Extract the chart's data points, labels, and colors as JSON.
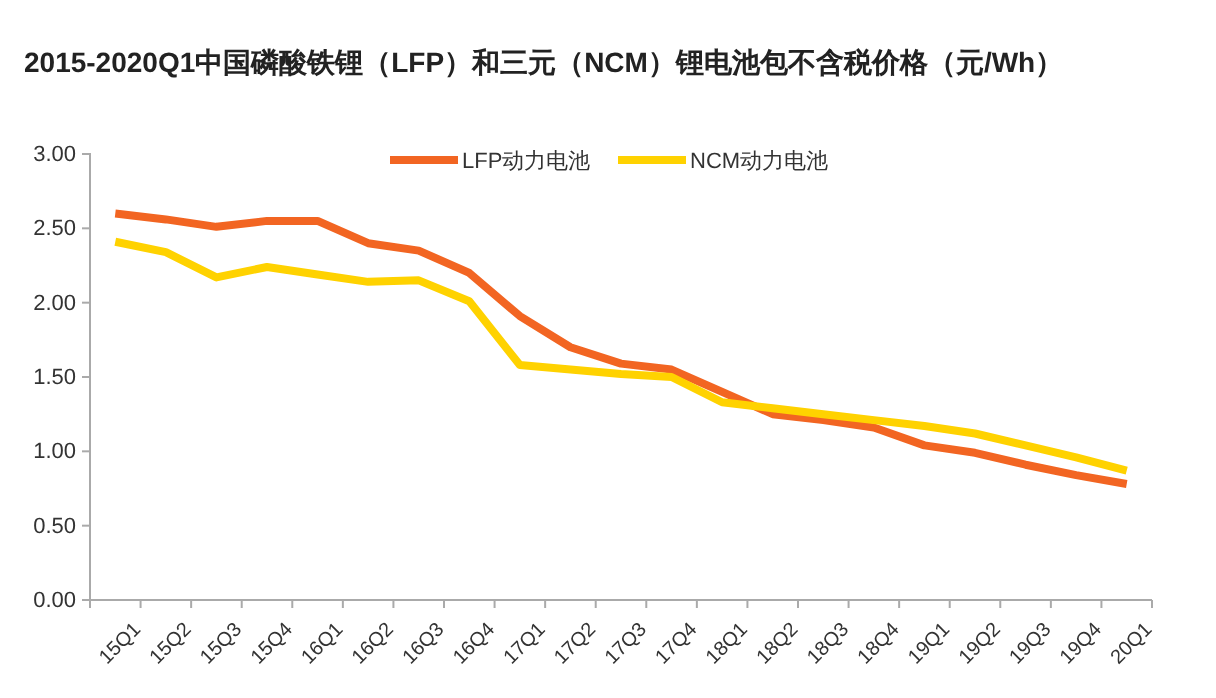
{
  "chart_data": {
    "type": "line",
    "title": "2015-2020Q1中国磷酸铁锂（LFP）和三元（NCM）锂电池包不含税价格（元/Wh）",
    "categories": [
      "15Q1",
      "15Q2",
      "15Q3",
      "15Q4",
      "16Q1",
      "16Q2",
      "16Q3",
      "16Q4",
      "17Q1",
      "17Q2",
      "17Q3",
      "17Q4",
      "18Q1",
      "18Q2",
      "18Q3",
      "18Q4",
      "19Q1",
      "19Q2",
      "19Q3",
      "19Q4",
      "20Q1"
    ],
    "series": [
      {
        "name": "LFP动力电池",
        "color": "#f26522",
        "values": [
          2.6,
          2.56,
          2.51,
          2.55,
          2.55,
          2.4,
          2.35,
          2.2,
          1.91,
          1.7,
          1.59,
          1.55,
          1.4,
          1.25,
          1.21,
          1.16,
          1.04,
          0.99,
          0.91,
          0.84,
          0.78
        ]
      },
      {
        "name": "NCM动力电池",
        "color": "#ffd200",
        "values": [
          2.41,
          2.34,
          2.17,
          2.24,
          2.19,
          2.14,
          2.15,
          2.01,
          1.58,
          1.55,
          1.52,
          1.5,
          1.33,
          1.29,
          1.25,
          1.21,
          1.17,
          1.12,
          1.04,
          0.96,
          0.87
        ]
      }
    ],
    "ylim": [
      0,
      3
    ],
    "yticks": [
      {
        "value": 0,
        "label": "0.00"
      },
      {
        "value": 0.5,
        "label": "0.50"
      },
      {
        "value": 1,
        "label": "1.00"
      },
      {
        "value": 1.5,
        "label": "1.50"
      },
      {
        "value": 2,
        "label": "2.00"
      },
      {
        "value": 2.5,
        "label": "2.50"
      },
      {
        "value": 3,
        "label": "3.00"
      }
    ],
    "grid": false,
    "legend": "top",
    "marker": "none",
    "line_style": "solid"
  }
}
